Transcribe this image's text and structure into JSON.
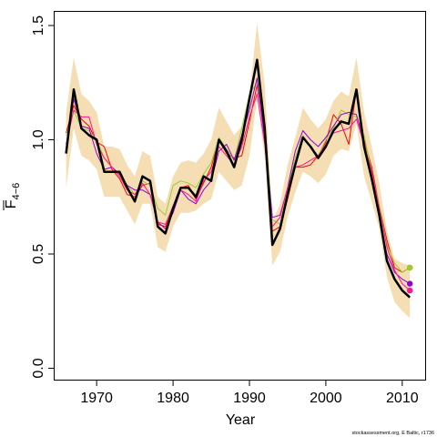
{
  "chart_data": {
    "type": "line",
    "xlabel": "Year",
    "ylabel": {
      "main": "F",
      "sub": "4−6"
    },
    "xlim": [
      1964.5,
      2013
    ],
    "ylim": [
      -0.05,
      1.56
    ],
    "xticks": [
      1970,
      1980,
      1990,
      2000,
      2010
    ],
    "yticks": [
      0.0,
      0.5,
      1.0,
      1.5
    ],
    "ytick_labels": [
      "0.0",
      "0.5",
      "1.0",
      "1.5"
    ],
    "grid": false,
    "footer": "stockassessment.org, E Baltic, r1736",
    "x": [
      1966,
      1967,
      1968,
      1969,
      1970,
      1971,
      1972,
      1973,
      1974,
      1975,
      1976,
      1977,
      1978,
      1979,
      1980,
      1981,
      1982,
      1983,
      1984,
      1985,
      1986,
      1987,
      1988,
      1989,
      1990,
      1991,
      1992,
      1993,
      1994,
      1995,
      1996,
      1997,
      1998,
      1999,
      2000,
      2001,
      2002,
      2003,
      2004,
      2005,
      2006,
      2007,
      2008,
      2009,
      2010,
      2011
    ],
    "band": {
      "color": "#f5deb3",
      "lower": [
        0.79,
        1.05,
        0.93,
        0.91,
        0.87,
        0.75,
        0.75,
        0.75,
        0.69,
        0.63,
        0.72,
        0.72,
        0.53,
        0.51,
        0.62,
        0.68,
        0.68,
        0.69,
        0.72,
        0.74,
        0.86,
        0.82,
        0.78,
        0.8,
        0.93,
        1.18,
        0.92,
        0.45,
        0.51,
        0.66,
        0.77,
        0.86,
        0.84,
        0.81,
        0.85,
        0.93,
        0.96,
        0.95,
        1.07,
        0.84,
        0.73,
        0.61,
        0.4,
        0.29,
        0.25,
        0.22
      ],
      "upper": [
        1.12,
        1.36,
        1.2,
        1.17,
        1.12,
        0.97,
        0.97,
        0.96,
        0.89,
        0.84,
        0.95,
        0.93,
        0.75,
        0.72,
        0.84,
        0.9,
        0.91,
        0.9,
        0.94,
        1.0,
        1.14,
        1.08,
        1.02,
        1.06,
        1.2,
        1.51,
        1.24,
        0.64,
        0.72,
        0.89,
        1.01,
        1.14,
        1.09,
        1.05,
        1.09,
        1.17,
        1.21,
        1.19,
        1.36,
        1.12,
        0.97,
        0.81,
        0.6,
        0.48,
        0.46,
        0.45
      ]
    },
    "series": [
      {
        "color": "#000000",
        "width": 2.5,
        "values": [
          0.94,
          1.22,
          1.05,
          1.02,
          1.0,
          0.86,
          0.86,
          0.86,
          0.79,
          0.73,
          0.84,
          0.82,
          0.62,
          0.59,
          0.7,
          0.79,
          0.79,
          0.75,
          0.84,
          0.82,
          1.0,
          0.95,
          0.88,
          1.0,
          1.18,
          1.35,
          1.05,
          0.54,
          0.61,
          0.76,
          0.89,
          1.01,
          0.97,
          0.92,
          0.97,
          1.04,
          1.08,
          1.07,
          1.22,
          0.97,
          0.83,
          0.67,
          0.47,
          0.39,
          0.34,
          0.31
        ]
      },
      {
        "color": "#ff0000",
        "width": 1,
        "values": [
          1.03,
          1.15,
          1.09,
          1.06,
          0.99,
          0.97,
          0.87,
          0.83,
          0.76,
          0.75,
          0.8,
          0.81,
          0.63,
          0.62,
          0.7,
          0.79,
          0.8,
          0.74,
          0.81,
          0.88,
          1.0,
          0.94,
          0.92,
          0.93,
          1.08,
          1.24,
          1.03,
          0.6,
          0.62,
          0.74,
          0.88,
          0.88,
          0.89,
          0.93,
          0.99,
          1.11,
          1.07,
          0.98,
          1.22,
          1.0,
          0.88,
          0.71,
          0.56,
          0.44,
          0.42,
          0.44
        ]
      },
      {
        "color": "#9acd32",
        "width": 1,
        "values": [
          1.02,
          1.13,
          1.05,
          1.04,
          1.0,
          0.92,
          0.88,
          0.85,
          0.8,
          0.76,
          0.82,
          0.8,
          0.7,
          0.67,
          0.8,
          0.82,
          0.81,
          0.79,
          0.85,
          0.9,
          1.01,
          0.96,
          0.91,
          1.05,
          1.2,
          1.25,
          1.07,
          0.65,
          0.63,
          0.78,
          0.92,
          1.02,
          0.97,
          0.93,
          1.0,
          1.05,
          1.13,
          1.11,
          1.1,
          1.02,
          0.86,
          0.71,
          0.54,
          0.46,
          0.42,
          0.44
        ]
      },
      {
        "color": "#9400d3",
        "width": 1,
        "values": [
          0.96,
          1.18,
          1.06,
          1.05,
          0.94,
          0.87,
          0.88,
          0.85,
          0.8,
          0.78,
          0.78,
          0.76,
          0.64,
          0.61,
          0.68,
          0.78,
          0.74,
          0.72,
          0.78,
          0.82,
          0.95,
          0.98,
          0.91,
          1.02,
          1.13,
          1.27,
          1.0,
          0.66,
          0.67,
          0.79,
          0.95,
          1.04,
          1.0,
          0.97,
          1.01,
          1.06,
          1.11,
          1.12,
          1.11,
          0.99,
          0.82,
          0.66,
          0.5,
          0.42,
          0.39,
          0.37
        ]
      },
      {
        "color": "#ff1493",
        "width": 1,
        "values": [
          0.98,
          1.13,
          1.1,
          1.1,
          0.98,
          0.92,
          0.88,
          0.84,
          0.78,
          0.76,
          0.81,
          0.76,
          0.64,
          0.63,
          0.71,
          0.78,
          0.76,
          0.73,
          0.82,
          0.86,
          0.97,
          0.93,
          0.89,
          0.97,
          1.1,
          1.2,
          0.98,
          0.62,
          0.66,
          0.79,
          0.88,
          0.89,
          0.91,
          0.93,
          0.98,
          1.03,
          1.04,
          1.05,
          1.09,
          0.98,
          0.86,
          0.7,
          0.53,
          0.43,
          0.37,
          0.34
        ]
      }
    ],
    "endpoints": [
      {
        "color": "#ff0000",
        "value": 0.44
      },
      {
        "color": "#9acd32",
        "value": 0.44
      },
      {
        "color": "#9400d3",
        "value": 0.37
      },
      {
        "color": "#ff1493",
        "value": 0.34
      }
    ]
  }
}
